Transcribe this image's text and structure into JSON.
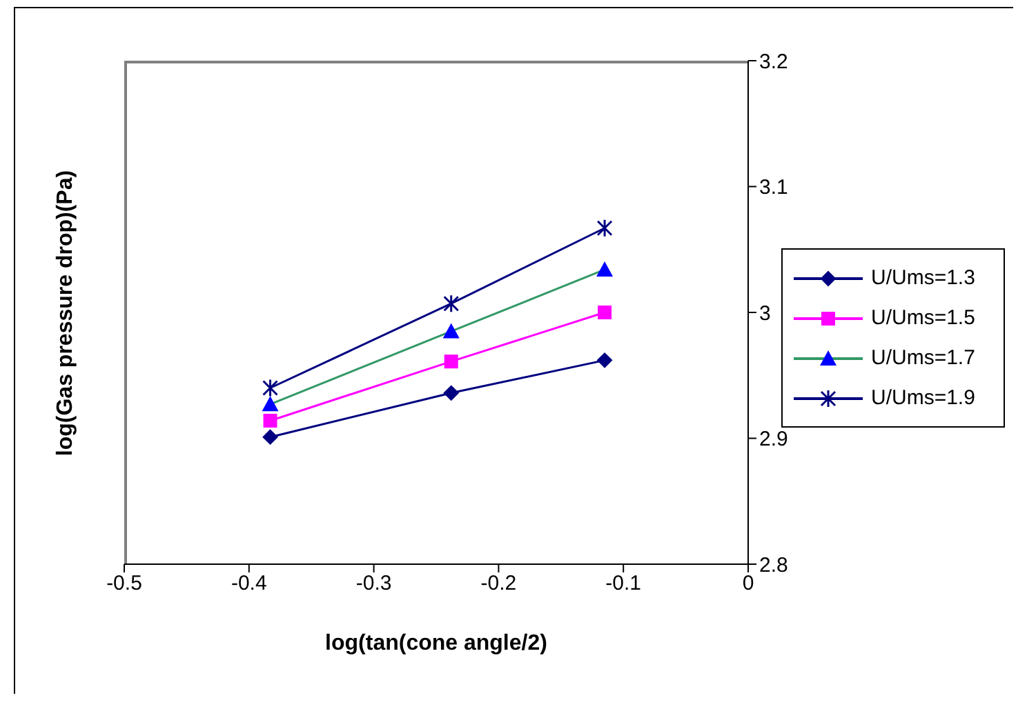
{
  "chart_data": {
    "type": "line",
    "xlabel": "log(tan(cone angle/2)",
    "ylabel": "log(Gas pressure drop)(Pa)",
    "x": [
      -0.383,
      -0.238,
      -0.115
    ],
    "series": [
      {
        "name": "U/Ums=1.3",
        "color": "#000080",
        "marker": "diamond",
        "values": [
          2.901,
          2.936,
          2.962
        ]
      },
      {
        "name": "U/Ums=1.5",
        "color": "#ff00ff",
        "marker": "square",
        "values": [
          2.914,
          2.961,
          3.0
        ]
      },
      {
        "name": "U/Ums=1.7",
        "color": "#339966",
        "marker": "triangle",
        "values": [
          2.927,
          2.985,
          3.034
        ]
      },
      {
        "name": "U/Ums=1.9",
        "color": "#000080",
        "marker": "cross",
        "values": [
          2.94,
          3.007,
          3.067
        ]
      }
    ],
    "xlim": [
      -0.5,
      0
    ],
    "xticks": [
      -0.5,
      -0.4,
      -0.3,
      -0.2,
      -0.1,
      0
    ],
    "ylim": [
      2.8,
      3.2
    ],
    "yticks": [
      2.8,
      2.9,
      3,
      3.1,
      3.2
    ],
    "grid": false,
    "legend": "right",
    "line_style": "solid"
  }
}
